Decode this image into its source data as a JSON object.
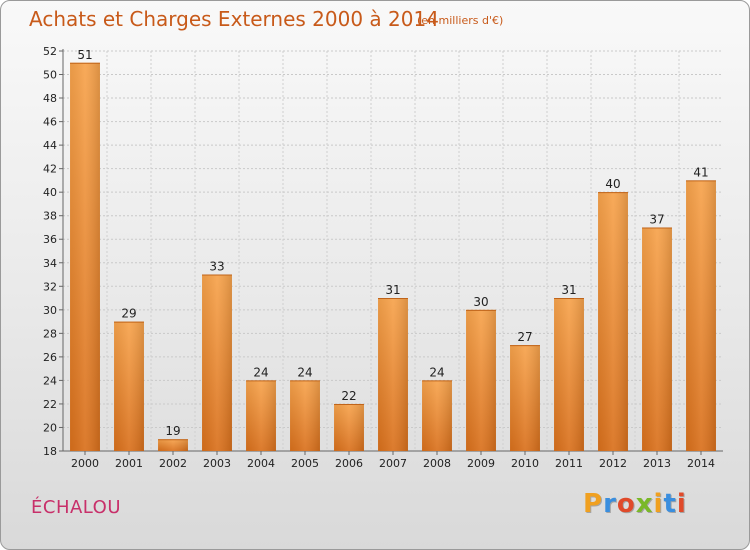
{
  "header": {
    "title": "Achats et Charges Externes 2000 à 2014",
    "unit": "(en milliers d'€)"
  },
  "commune": "ÉCHALOU",
  "logo": {
    "letters": [
      "P",
      "r",
      "o",
      "x",
      "i",
      "t",
      "i"
    ],
    "colors": [
      "#f0a020",
      "#3a8ede",
      "#e04a2a",
      "#7ab828",
      "#f0a020",
      "#3a8ede",
      "#e04a2a"
    ]
  },
  "chart_data": {
    "type": "bar",
    "title": "Achats et Charges Externes 2000 à 2014",
    "subtitle": "(en milliers d'€)",
    "categories": [
      "2000",
      "2001",
      "2002",
      "2003",
      "2004",
      "2005",
      "2006",
      "2007",
      "2008",
      "2009",
      "2010",
      "2011",
      "2012",
      "2013",
      "2014"
    ],
    "values": [
      51,
      29,
      19,
      33,
      24,
      24,
      22,
      31,
      24,
      30,
      27,
      31,
      40,
      37,
      41
    ],
    "ylim": [
      18,
      52
    ],
    "yticks": [
      18,
      20,
      22,
      24,
      26,
      28,
      30,
      32,
      34,
      36,
      38,
      40,
      42,
      44,
      46,
      48,
      50,
      52
    ],
    "grid": true,
    "colors": {
      "bar_top": "#f7a34c",
      "bar_bottom": "#d9701c"
    }
  }
}
